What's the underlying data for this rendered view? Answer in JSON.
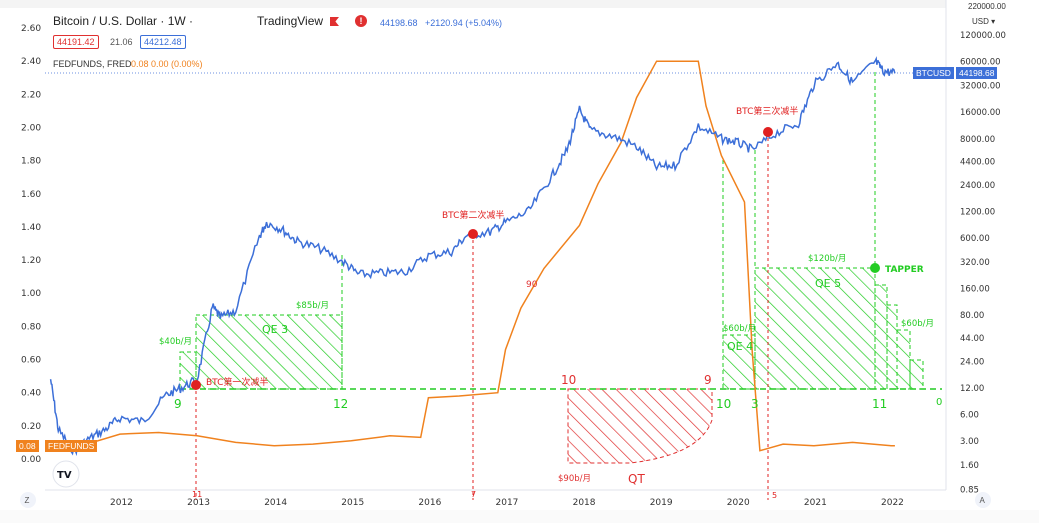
{
  "header": {
    "symbol_title": "Bitcoin / U.S. Dollar · 1W ·",
    "brand": "TradingView",
    "quote_price": "44198.68",
    "quote_change": "+2120.94 (+5.04%)",
    "bid": "44191.42",
    "spread": "21.06",
    "ask": "44212.48",
    "fed_line": "FEDFUNDS, FRED",
    "fed_values": "0.08 0.00 (0.00%)"
  },
  "right_axis": {
    "currency": "USD",
    "top_value": "220000.00",
    "price_tag_label": "BTCUSD",
    "price_tag_value": "44198.68"
  },
  "left_tags": {
    "value": "0.08",
    "label": "FEDFUNDS"
  },
  "colors": {
    "btc": "#3c6fd8",
    "fed": "#f0821e",
    "qe": "#22cc22",
    "qt": "#e03030",
    "halving": "#e02020"
  },
  "chart_data": [
    {
      "type": "line",
      "title": "Bitcoin / U.S. Dollar · 1W",
      "scale": "log",
      "y_ticks": [
        "120000.00",
        "60000.00",
        "32000.00",
        "16000.00",
        "8000.00",
        "4400.00",
        "2400.00",
        "1200.00",
        "600.00",
        "320.00",
        "160.00",
        "80.00",
        "44.00",
        "24.00",
        "12.00",
        "6.00",
        "3.00",
        "1.60",
        "0.85"
      ],
      "series": [
        {
          "name": "BTCUSD",
          "x": [
            2011.1,
            2011.2,
            2011.4,
            2011.6,
            2011.8,
            2012.0,
            2012.3,
            2012.6,
            2012.8,
            2013.0,
            2013.2,
            2013.3,
            2013.5,
            2013.8,
            2013.9,
            2014.1,
            2014.3,
            2014.6,
            2014.9,
            2015.1,
            2015.4,
            2015.7,
            2016.0,
            2016.3,
            2016.5,
            2016.8,
            2017.0,
            2017.3,
            2017.6,
            2017.8,
            2017.96,
            2018.1,
            2018.4,
            2018.7,
            2018.96,
            2019.2,
            2019.5,
            2019.8,
            2020.0,
            2020.2,
            2020.5,
            2020.8,
            2021.0,
            2021.3,
            2021.5,
            2021.8,
            2021.9,
            2022.05
          ],
          "values": [
            15,
            4,
            2.3,
            3.2,
            4,
            5.5,
            5,
            10,
            12,
            15,
            100,
            75,
            90,
            600,
            900,
            750,
            550,
            450,
            320,
            230,
            240,
            250,
            380,
            420,
            650,
            700,
            900,
            1200,
            3000,
            6000,
            17000,
            10000,
            8500,
            6500,
            3800,
            4000,
            11000,
            8000,
            7300,
            6000,
            9200,
            12000,
            33000,
            58000,
            35000,
            60000,
            47000,
            44198.68
          ]
        }
      ]
    },
    {
      "type": "line",
      "title": "FEDFUNDS, FRED",
      "y_ticks": [
        "2.60",
        "2.40",
        "2.20",
        "2.00",
        "1.80",
        "1.60",
        "1.40",
        "1.20",
        "1.00",
        "0.80",
        "0.60",
        "0.40",
        "0.20",
        "0.00"
      ],
      "x_ticks": [
        "2012",
        "2013",
        "2014",
        "2015",
        "2016",
        "2017",
        "2018",
        "2019",
        "2020",
        "2021",
        "2022"
      ],
      "series": [
        {
          "name": "FEDFUNDS",
          "x": [
            2011.1,
            2011.5,
            2012.0,
            2012.5,
            2013.0,
            2013.5,
            2014.0,
            2014.5,
            2015.0,
            2015.5,
            2015.9,
            2016.0,
            2016.4,
            2016.9,
            2017.0,
            2017.2,
            2017.5,
            2017.96,
            2018.2,
            2018.5,
            2018.7,
            2018.96,
            2019.1,
            2019.5,
            2019.6,
            2019.8,
            2020.1,
            2020.2,
            2020.3,
            2020.6,
            2021.0,
            2021.5,
            2022.0,
            2022.05
          ],
          "values": [
            0.1,
            0.08,
            0.15,
            0.16,
            0.14,
            0.1,
            0.08,
            0.09,
            0.11,
            0.14,
            0.13,
            0.37,
            0.38,
            0.4,
            0.66,
            0.91,
            1.15,
            1.41,
            1.66,
            1.91,
            2.18,
            2.4,
            2.4,
            2.4,
            2.13,
            1.83,
            1.55,
            0.65,
            0.05,
            0.09,
            0.08,
            0.1,
            0.08,
            0.08
          ]
        }
      ]
    }
  ],
  "annotations": {
    "halving1": "BTC第一次减半",
    "halving2": "BTC第二次减半",
    "halving3": "BTC第三次减半",
    "qe3": "QE 3",
    "qe4": "QE 4",
    "qe5": "QE 5",
    "qt": "QT",
    "tapper": "TAPPER",
    "rate40": "$40b/月",
    "rate85": "$85b/月",
    "rate60a": "$60b/月",
    "rate120": "$120b/月",
    "rate60b": "$60b/月",
    "rate90": "$90b/月",
    "n9a": "9",
    "n12": "12",
    "n10a": "10",
    "n9b": "9",
    "n10b": "10",
    "n3": "3",
    "n11a": "11",
    "n0": "0",
    "n90": "90",
    "v11": "11",
    "v7": "7",
    "v5": "5"
  },
  "bottom_bar": {
    "left_icon": "zoom-z-icon",
    "right_icon": "auto-scale-icon",
    "left_label": "Z",
    "right_label": "A"
  },
  "logo": "TV"
}
